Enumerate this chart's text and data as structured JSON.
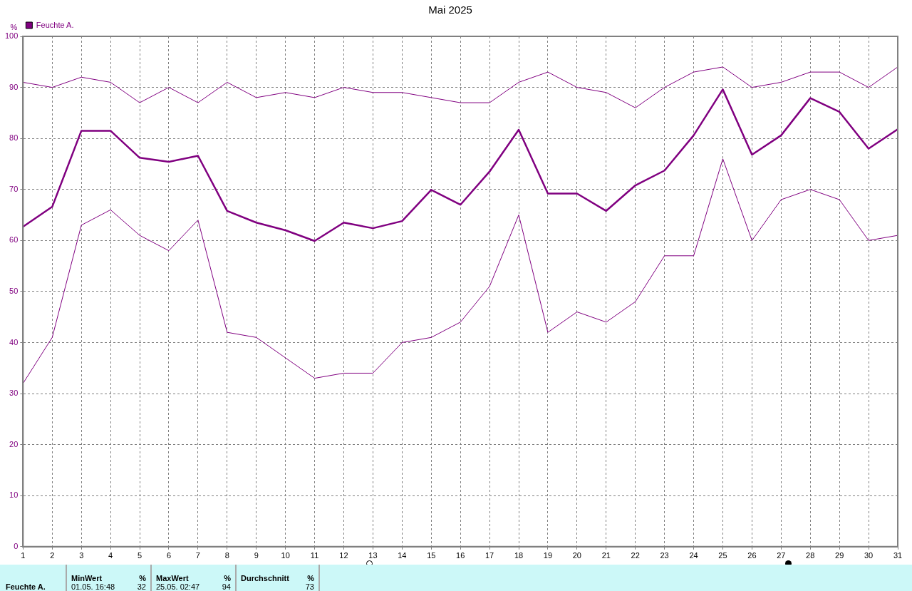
{
  "chart_data": {
    "type": "line",
    "title": "Mai 2025",
    "ylabel": "%",
    "x": [
      1,
      2,
      3,
      4,
      5,
      6,
      7,
      8,
      9,
      10,
      11,
      12,
      13,
      14,
      15,
      16,
      17,
      18,
      19,
      20,
      21,
      22,
      23,
      24,
      25,
      26,
      27,
      28,
      29,
      30,
      31
    ],
    "series": [
      {
        "color": "#800080",
        "values": [
          91,
          90,
          92,
          91,
          87,
          90,
          87,
          91,
          88,
          89,
          88,
          90,
          89,
          89,
          88,
          87,
          87,
          91,
          93,
          90,
          89,
          86,
          90,
          93,
          94,
          90,
          91,
          93,
          93,
          90,
          94
        ]
      },
      {
        "name": "Feuchte A.",
        "color": "#800080",
        "values": [
          62.7,
          66.6,
          81.5,
          81.5,
          76.2,
          75.4,
          76.6,
          65.8,
          63.5,
          62,
          59.9,
          63.5,
          62.4,
          63.8,
          69.9,
          67,
          73.5,
          81.7,
          69.2,
          69.2,
          65.8,
          70.8,
          73.7,
          80.6,
          89.6,
          76.8,
          80.6,
          87.9,
          85.2,
          78,
          81.8
        ]
      },
      {
        "color": "#800080",
        "values": [
          32,
          41,
          63,
          66,
          61,
          58,
          64,
          42,
          41,
          37,
          33,
          34,
          34,
          40,
          41,
          44,
          51,
          65,
          42,
          46,
          44,
          48,
          57,
          57,
          76,
          60,
          68,
          70,
          68,
          60,
          61
        ]
      }
    ],
    "xlim": [
      1,
      31
    ],
    "xticks": [
      1,
      2,
      3,
      4,
      5,
      6,
      7,
      8,
      9,
      10,
      11,
      12,
      13,
      14,
      15,
      16,
      17,
      18,
      19,
      20,
      21,
      22,
      23,
      24,
      25,
      26,
      27,
      28,
      29,
      30,
      31
    ],
    "ylim": [
      0,
      100
    ],
    "yticks": [
      0,
      10,
      20,
      30,
      40,
      50,
      60,
      70,
      80,
      90,
      100
    ],
    "grid": true,
    "legend": "top left",
    "marker": "none",
    "line_style": "solid",
    "annotations": [
      "Feuchte A.",
      "MinWert",
      "%",
      "01.05.  16:48",
      "32",
      "MaxWert",
      "%",
      "25.05.  02:47",
      "94",
      "Durchschnitt",
      "%",
      "73"
    ]
  }
}
